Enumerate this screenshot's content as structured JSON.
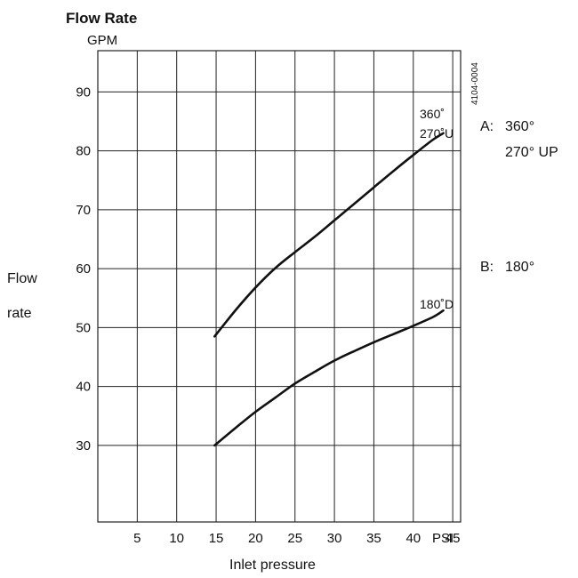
{
  "chart_data": {
    "type": "line",
    "title": "Flow Rate",
    "y_unit": "GPM",
    "ylabel_lines": [
      "Flow",
      "rate"
    ],
    "xlabel": "Inlet pressure",
    "x_unit": "PSI",
    "figure_code": "4104-0004",
    "xlim": [
      0,
      46
    ],
    "ylim": [
      17,
      97
    ],
    "x_ticks": [
      5,
      10,
      15,
      20,
      25,
      30,
      35,
      40,
      45
    ],
    "y_ticks": [
      30,
      40,
      50,
      60,
      70,
      80,
      90
    ],
    "x_grid": [
      5,
      10,
      15,
      20,
      25,
      30,
      35,
      40,
      45
    ],
    "y_grid": [
      30,
      40,
      50,
      60,
      70,
      80,
      90
    ],
    "grid": true,
    "series": [
      {
        "name_lines": [
          "360˚",
          "270˚U"
        ],
        "x": [
          14.8,
          17.5,
          20,
          22.5,
          25,
          27.5,
          30,
          32.5,
          35,
          37.5,
          40,
          42.5,
          43.8
        ],
        "y": [
          48.5,
          53,
          56.8,
          60.1,
          62.8,
          65.4,
          68.2,
          71,
          73.8,
          76.6,
          79.3,
          81.9,
          83
        ]
      },
      {
        "name_lines": [
          "180˚D"
        ],
        "x": [
          14.8,
          17.5,
          20,
          22.5,
          25,
          27.5,
          30,
          32.5,
          35,
          37.5,
          40,
          42.5,
          43.8
        ],
        "y": [
          30,
          33,
          35.7,
          38.1,
          40.5,
          42.5,
          44.4,
          46,
          47.5,
          48.9,
          50.3,
          51.8,
          52.9
        ]
      }
    ],
    "annotations": [
      {
        "prefix": "A:",
        "lines": [
          "360°",
          "270° UP"
        ]
      },
      {
        "prefix": "B:",
        "lines": [
          "180°"
        ]
      }
    ]
  }
}
